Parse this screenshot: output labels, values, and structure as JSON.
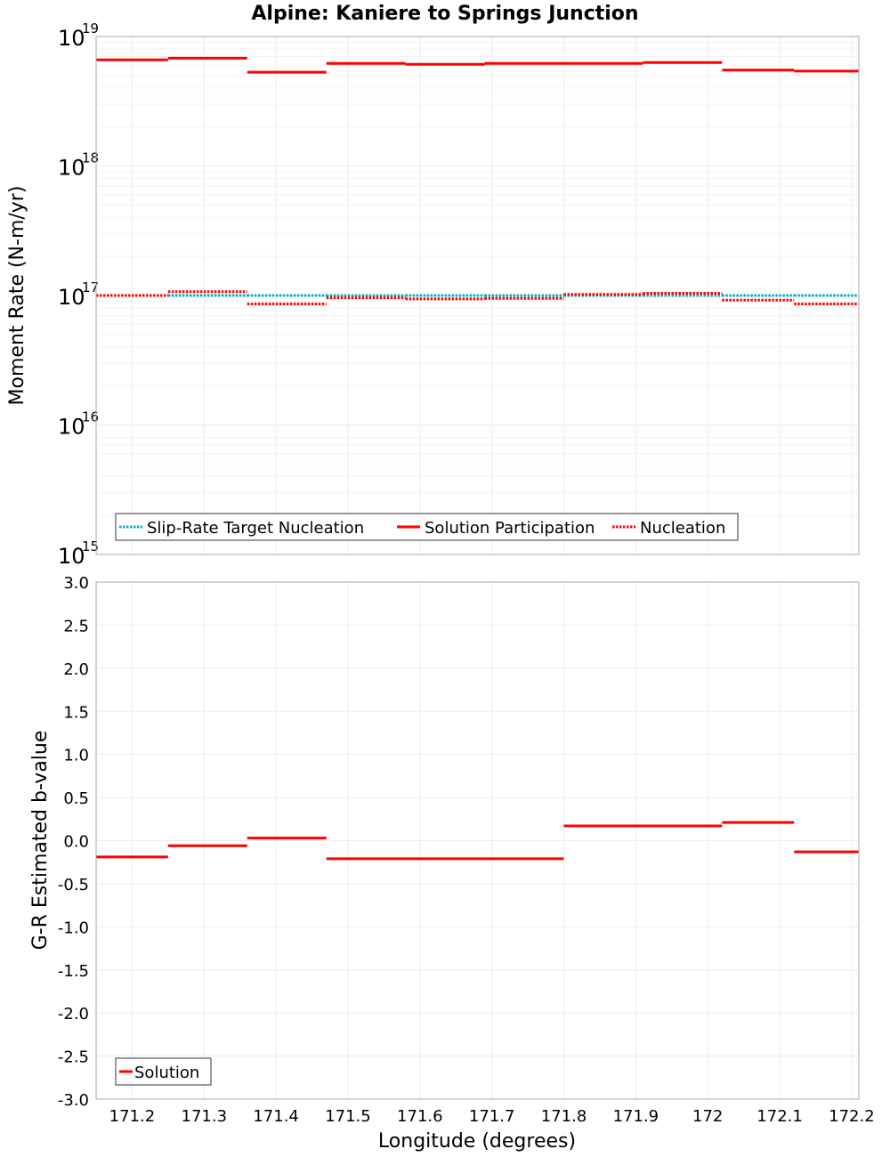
{
  "chart_data": [
    {
      "type": "line",
      "title": "Alpine: Kaniere to Springs Junction",
      "xlabel": "",
      "ylabel": "Moment Rate (N-m/yr)",
      "yscale": "log",
      "xlim": [
        171.15,
        172.21
      ],
      "ylim": [
        1000000000000000.0,
        1e+19
      ],
      "yticks": [
        {
          "base": "10",
          "exp": "15",
          "value": 1000000000000000.0
        },
        {
          "base": "10",
          "exp": "16",
          "value": 1e+16
        },
        {
          "base": "10",
          "exp": "17",
          "value": 1e+17
        },
        {
          "base": "10",
          "exp": "18",
          "value": 1e+18
        },
        {
          "base": "10",
          "exp": "19",
          "value": 1e+19
        }
      ],
      "xticks": [
        "171.2",
        "171.3",
        "171.4",
        "171.5",
        "171.6",
        "171.7",
        "171.8",
        "171.9",
        "172",
        "172.1",
        "172.2"
      ],
      "segment_edges": [
        171.15,
        171.25,
        171.36,
        171.47,
        171.58,
        171.69,
        171.8,
        171.91,
        172.02,
        172.12,
        172.21
      ],
      "legend_position": "bottom-left",
      "series": [
        {
          "name": "Slip-Rate Target Nucleation",
          "color": "#00b0c0",
          "style": "dotted",
          "values": [
            1e+17,
            1e+17,
            1e+17,
            1e+17,
            1e+17,
            1e+17,
            1e+17,
            1e+17,
            1e+17,
            1e+17
          ]
        },
        {
          "name": "Solution Participation",
          "color": "#ff0000",
          "style": "solid",
          "values": [
            6.6e+18,
            6.8e+18,
            5.3e+18,
            6.2e+18,
            6.1e+18,
            6.2e+18,
            6.2e+18,
            6.3e+18,
            5.5e+18,
            5.4e+18
          ]
        },
        {
          "name": "Nucleation",
          "color": "#ff0000",
          "style": "dotted",
          "values": [
            1e+17,
            1.07e+17,
            8.6e+16,
            9.6e+16,
            9.4e+16,
            9.5e+16,
            1.02e+17,
            1.04e+17,
            9.2e+16,
            8.6e+16
          ]
        }
      ]
    },
    {
      "type": "line",
      "title": "",
      "xlabel": "Longitude (degrees)",
      "ylabel": "G-R Estimated b-value",
      "xlim": [
        171.15,
        172.21
      ],
      "ylim": [
        -3.0,
        3.0
      ],
      "yticks": [
        "3.0",
        "2.5",
        "2.0",
        "1.5",
        "1.0",
        "0.5",
        "0.0",
        "-0.5",
        "-1.0",
        "-1.5",
        "-2.0",
        "-2.5",
        "-3.0"
      ],
      "xticks": [
        "171.2",
        "171.3",
        "171.4",
        "171.5",
        "171.6",
        "171.7",
        "171.8",
        "171.9",
        "172",
        "172.1",
        "172.2"
      ],
      "segment_edges": [
        171.15,
        171.25,
        171.36,
        171.47,
        171.58,
        171.69,
        171.8,
        171.91,
        172.02,
        172.12,
        172.21
      ],
      "legend_position": "bottom-left",
      "series": [
        {
          "name": "Solution",
          "color": "#ff0000",
          "style": "solid",
          "values": [
            -0.19,
            -0.06,
            0.03,
            -0.21,
            -0.21,
            -0.21,
            0.17,
            0.17,
            0.21,
            -0.13
          ]
        }
      ]
    }
  ]
}
